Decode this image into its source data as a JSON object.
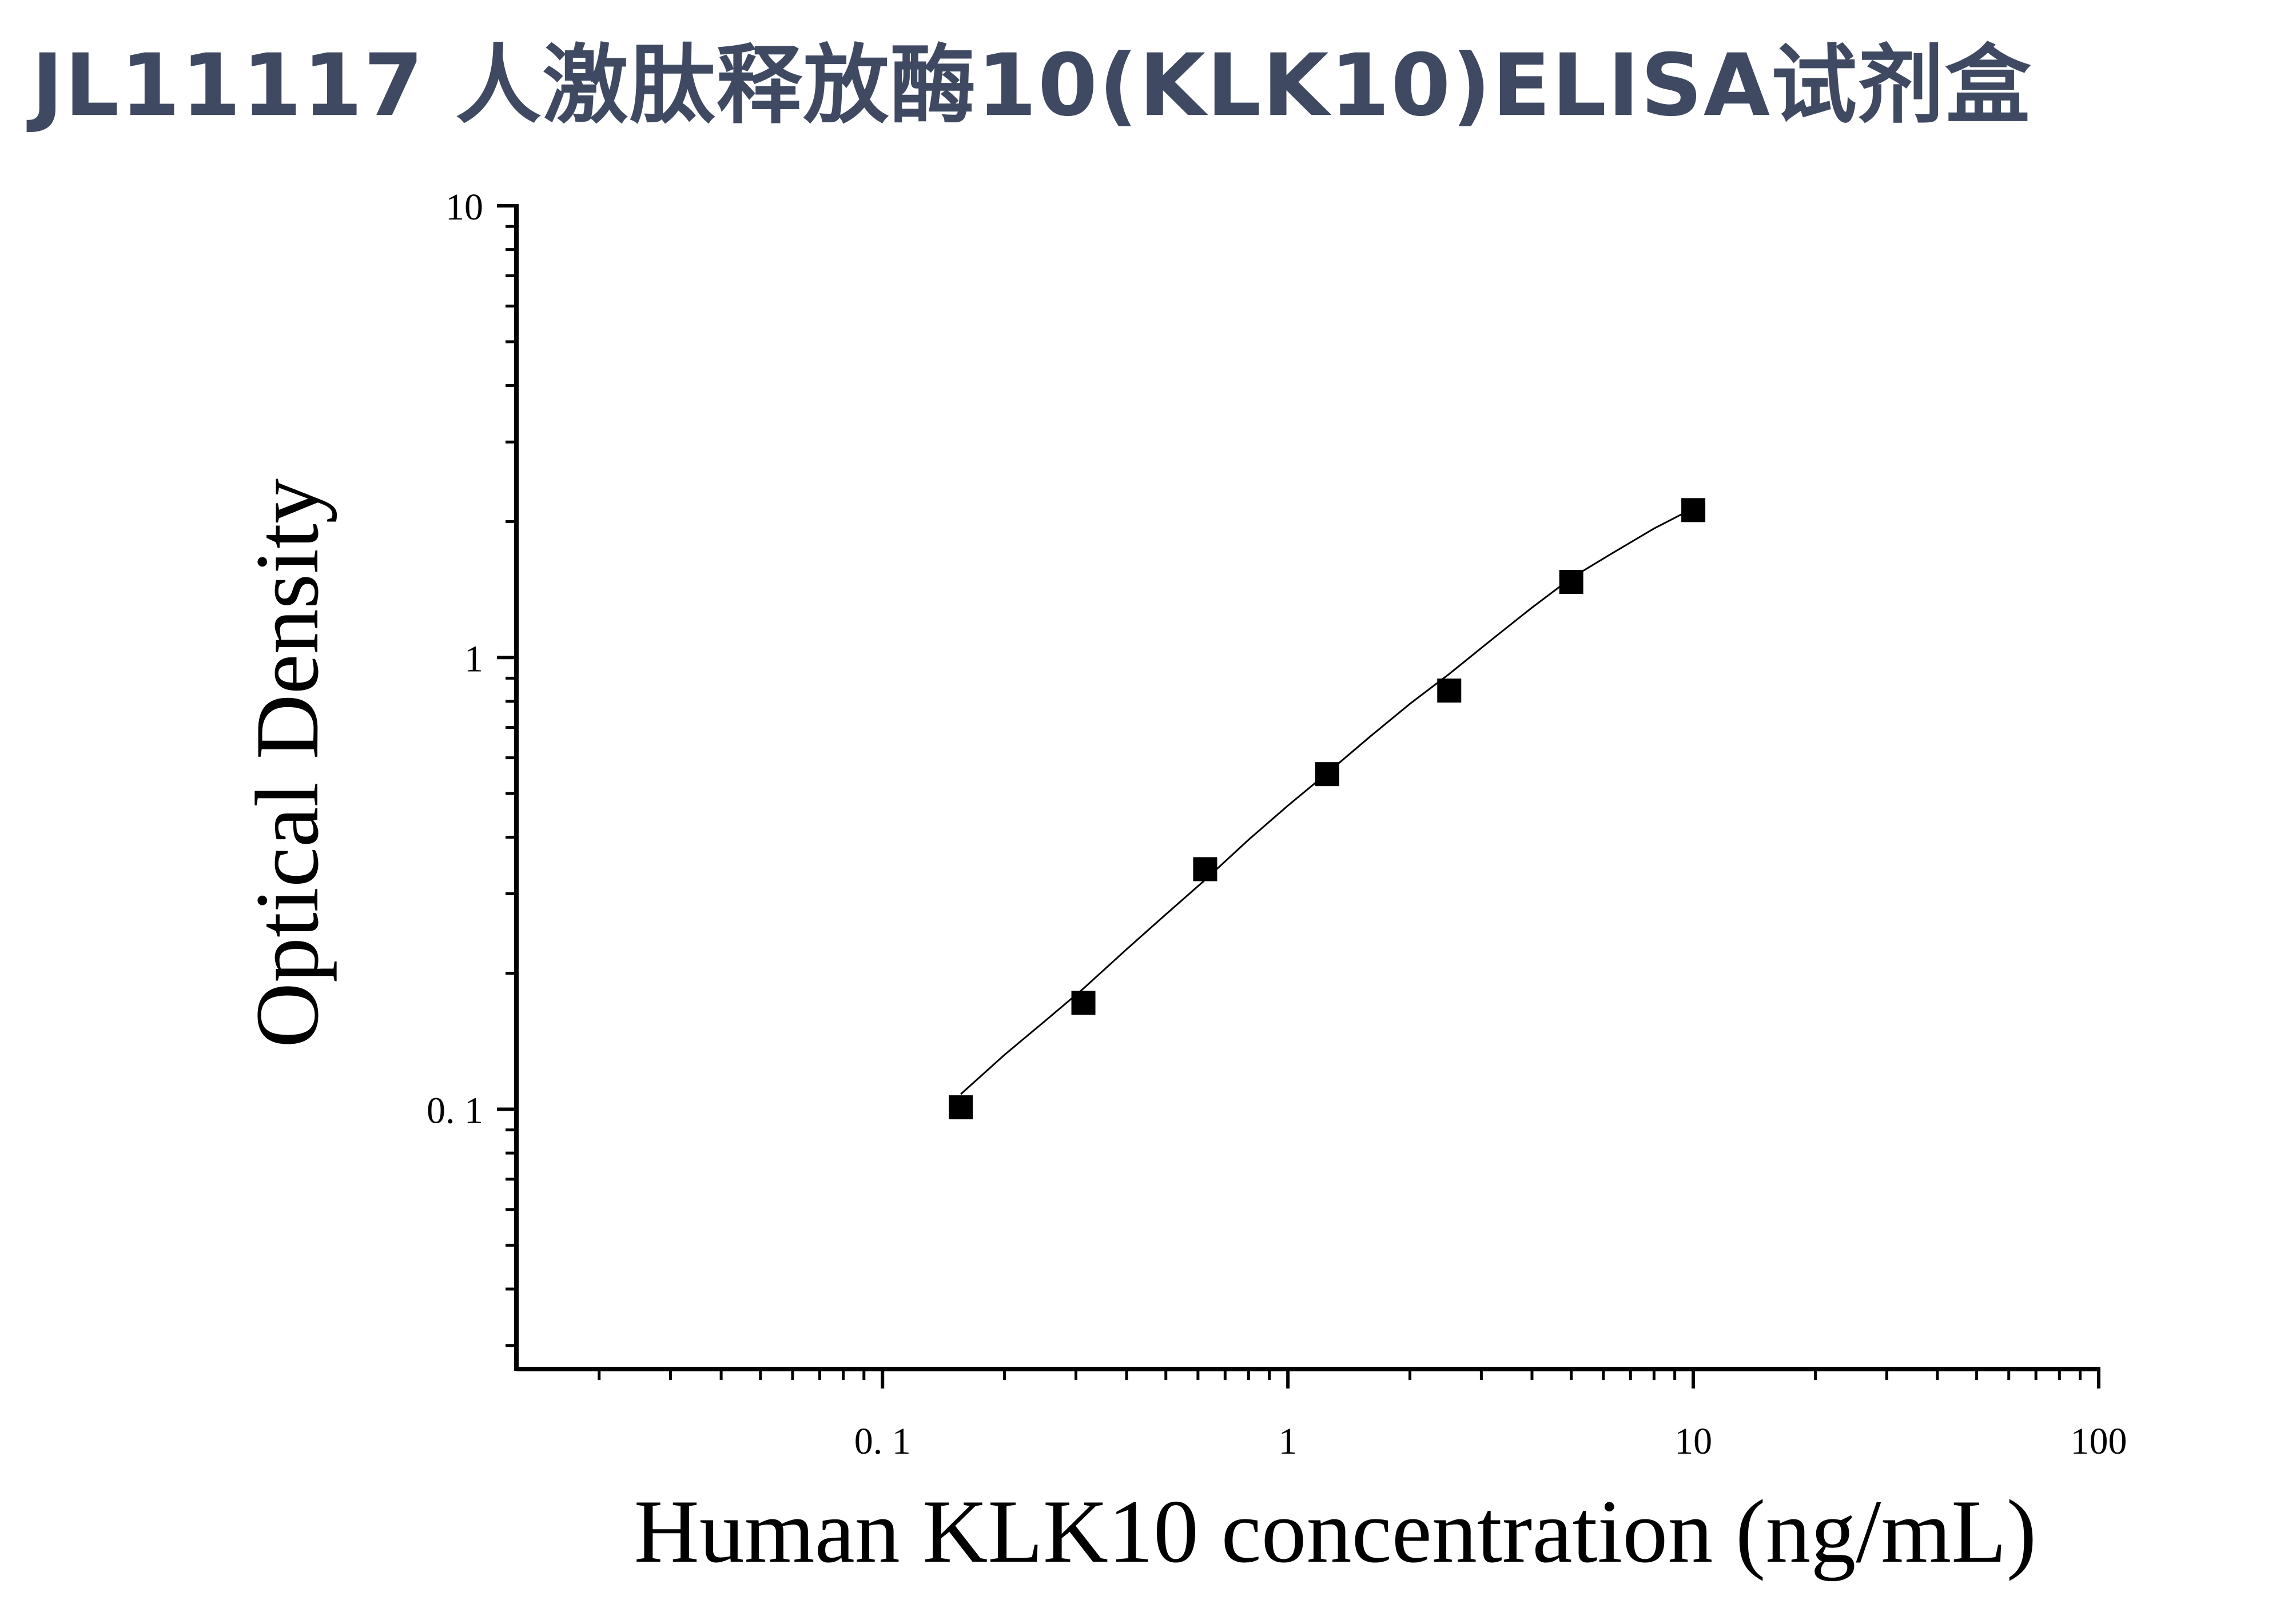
{
  "chart_data": {
    "type": "scatter",
    "title": "JL11117 人激肽释放酶10(KLK10)ELISA试剂盒",
    "xlabel": "Human KLK10 concentration (ng/mL)",
    "ylabel": "Optical Density",
    "xscale": "log",
    "yscale": "log",
    "xlim": [
      0.0125,
      100
    ],
    "ylim": [
      0.0266,
      10
    ],
    "x_ticks": [
      {
        "value": 0.1,
        "label": "0. 1"
      },
      {
        "value": 1,
        "label": "1"
      },
      {
        "value": 10,
        "label": "10"
      },
      {
        "value": 100,
        "label": "100"
      }
    ],
    "y_ticks": [
      {
        "value": 0.1,
        "label": "0. 1"
      },
      {
        "value": 1,
        "label": "1"
      },
      {
        "value": 10,
        "label": "10"
      }
    ],
    "series": [
      {
        "marker": "square",
        "color": "#000000",
        "x": [
          0.156,
          0.313,
          0.625,
          1.25,
          2.5,
          5,
          10
        ],
        "y": [
          0.101,
          0.172,
          0.34,
          0.552,
          0.845,
          1.47,
          2.12
        ]
      }
    ],
    "fit_curve": {
      "color": "#000000",
      "x": [
        0.156,
        0.2,
        0.25,
        0.313,
        0.4,
        0.5,
        0.625,
        0.8,
        1.0,
        1.25,
        1.6,
        2.0,
        2.5,
        3.2,
        4.0,
        5.0,
        6.3,
        8.0,
        10.0
      ],
      "y": [
        0.108,
        0.132,
        0.156,
        0.185,
        0.226,
        0.27,
        0.322,
        0.395,
        0.47,
        0.555,
        0.67,
        0.79,
        0.92,
        1.1,
        1.29,
        1.5,
        1.7,
        1.93,
        2.14
      ]
    },
    "grid": false,
    "legend": "none"
  }
}
